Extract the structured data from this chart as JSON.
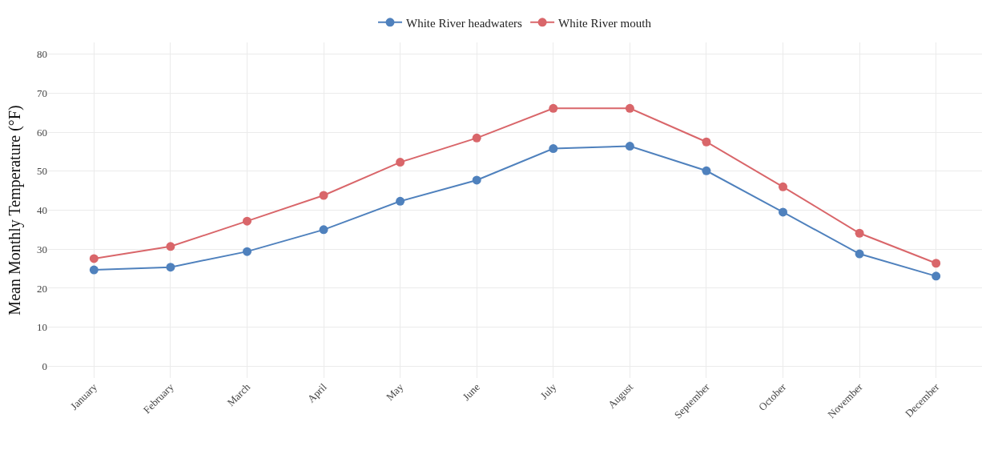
{
  "chart_data": {
    "type": "line",
    "ylabel": "Mean Monthly Temperature (°F)",
    "categories": [
      "January",
      "February",
      "March",
      "April",
      "May",
      "June",
      "July",
      "August",
      "September",
      "October",
      "November",
      "December"
    ],
    "series": [
      {
        "name": "White River headwaters",
        "color": "#4f81bd",
        "values": [
          24.7,
          25.4,
          29.4,
          35.0,
          42.3,
          47.7,
          55.8,
          56.4,
          50.1,
          39.5,
          28.8,
          23.1
        ]
      },
      {
        "name": "White River mouth",
        "color": "#d9666a",
        "values": [
          27.6,
          30.7,
          37.2,
          43.8,
          52.3,
          58.5,
          66.1,
          66.1,
          57.5,
          46.0,
          34.1,
          26.4
        ]
      }
    ],
    "ylim": [
      -3,
      83
    ],
    "yticks": [
      0,
      10,
      20,
      30,
      40,
      50,
      60,
      70,
      80
    ],
    "grid": true,
    "legend": "top",
    "marker": "circle",
    "line_style": "solid"
  }
}
